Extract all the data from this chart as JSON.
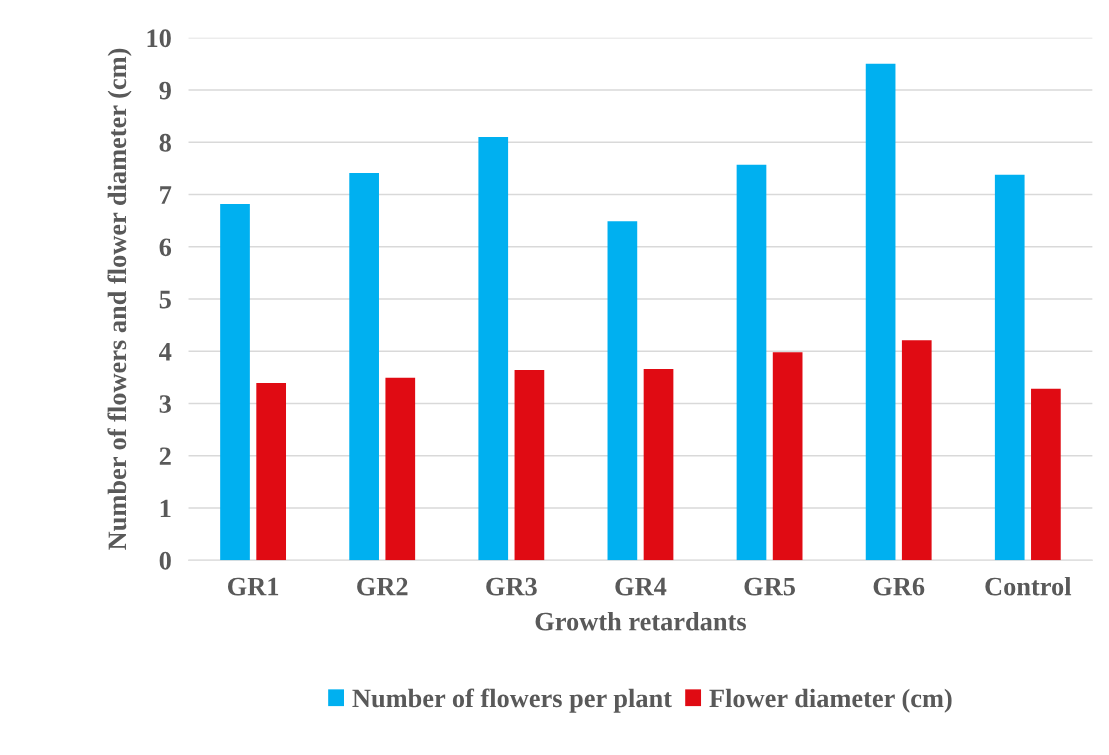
{
  "chart_data": {
    "type": "bar",
    "xlabel": "Growth retardants",
    "ylabel": "Number of flowers and flower diameter (cm)",
    "categories": [
      "GR1",
      "GR2",
      "GR3",
      "GR4",
      "GR5",
      "GR6",
      "Control"
    ],
    "series": [
      {
        "name": "Number of flowers per plant",
        "color": "#00b0f0",
        "values": [
          6.82,
          7.41,
          8.1,
          6.49,
          7.57,
          9.5,
          7.38
        ]
      },
      {
        "name": "Flower diameter (cm)",
        "color": "#e00b13",
        "values": [
          3.39,
          3.49,
          3.64,
          3.66,
          3.98,
          4.21,
          3.28
        ]
      }
    ],
    "ylim": [
      0,
      10
    ],
    "yticks": [
      0,
      1,
      2,
      3,
      4,
      5,
      6,
      7,
      8,
      9,
      10
    ],
    "grid": "y",
    "legend": "bottom"
  }
}
